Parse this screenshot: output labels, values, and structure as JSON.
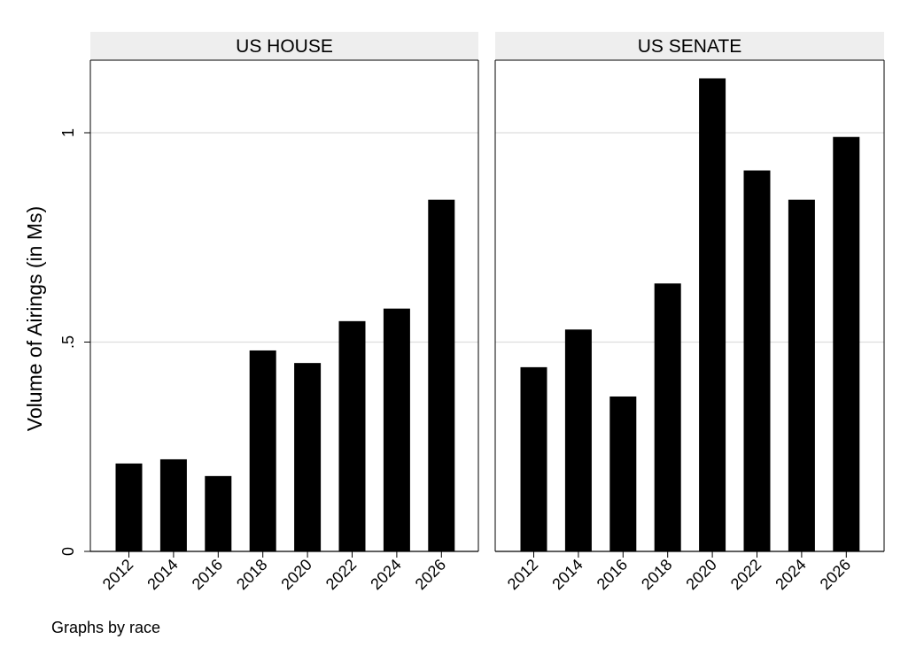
{
  "chart_data": {
    "type": "bar",
    "ylabel": "Volume of Airings (in Ms)",
    "ylim": [
      0,
      1.15
    ],
    "yticks": [
      {
        "value": 0,
        "label": "0"
      },
      {
        "value": 0.5,
        "label": ".5"
      },
      {
        "value": 1,
        "label": "1"
      }
    ],
    "grid": true,
    "categories": [
      "2012",
      "2014",
      "2016",
      "2018",
      "2020",
      "2022",
      "2024",
      "2026"
    ],
    "panels": [
      {
        "title": "US HOUSE",
        "values": [
          0.21,
          0.22,
          0.18,
          0.48,
          0.45,
          0.55,
          0.58,
          0.84
        ]
      },
      {
        "title": "US SENATE",
        "values": [
          0.44,
          0.53,
          0.37,
          0.64,
          1.13,
          0.91,
          0.84,
          0.99
        ]
      }
    ],
    "bar_color": "#000000",
    "header_color": "#eeeeee",
    "grid_color": "#dddddd"
  },
  "footnote": "Graphs by race"
}
